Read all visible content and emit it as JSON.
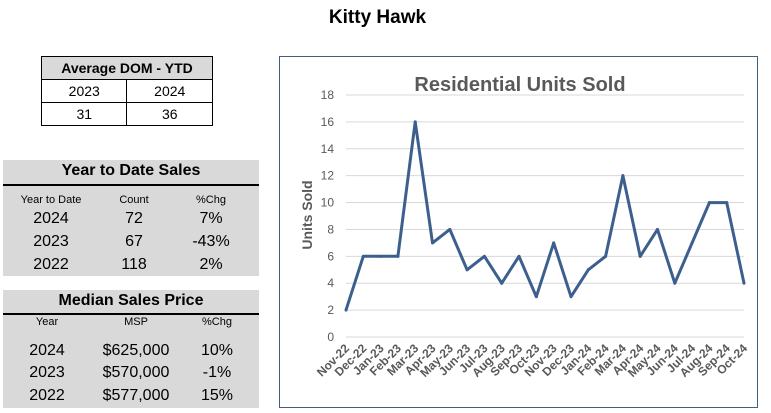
{
  "page_title": "Kitty Hawk",
  "dom": {
    "header": "Average DOM - YTD",
    "years": [
      "2023",
      "2024"
    ],
    "values": [
      "31",
      "36"
    ]
  },
  "ytd": {
    "title": "Year to Date Sales",
    "columns": [
      "Year to Date",
      "Count",
      "%Chg"
    ],
    "rows": [
      {
        "year": "2024",
        "count": "72",
        "chg": "7%"
      },
      {
        "year": "2023",
        "count": "67",
        "chg": "-43%"
      },
      {
        "year": "2022",
        "count": "118",
        "chg": "2%"
      }
    ]
  },
  "msp": {
    "title": "Median Sales Price",
    "columns": [
      "Year",
      "MSP",
      "%Chg"
    ],
    "rows": [
      {
        "year": "2024",
        "price": "$625,000",
        "chg": "10%"
      },
      {
        "year": "2023",
        "price": "$570,000",
        "chg": "-1%"
      },
      {
        "year": "2022",
        "price": "$577,000",
        "chg": "15%"
      }
    ]
  },
  "chart_data": {
    "type": "line",
    "title": "Residential Units Sold",
    "xlabel": "",
    "ylabel": "Units Sold",
    "ylim": [
      0,
      18
    ],
    "yticks": [
      "0",
      "2",
      "4",
      "6",
      "8",
      "10",
      "12",
      "14",
      "16",
      "18"
    ],
    "grid": true,
    "categories": [
      "Nov-22",
      "Dec-22",
      "Jan-23",
      "Feb-23",
      "Mar-23",
      "Apr-23",
      "May-23",
      "Jun-23",
      "Jul-23",
      "Aug-23",
      "Sep-23",
      "Oct-23",
      "Nov-23",
      "Dec-23",
      "Jan-24",
      "Feb-24",
      "Mar-24",
      "Apr-24",
      "May-24",
      "Jun-24",
      "Jul-24",
      "Aug-24",
      "Sep-24",
      "Oct-24"
    ],
    "series": [
      {
        "values": [
          2,
          6,
          6,
          6,
          16,
          7,
          8,
          5,
          6,
          4,
          6,
          3,
          7,
          3,
          5,
          6,
          12,
          6,
          8,
          4,
          7,
          10,
          10,
          4
        ]
      }
    ],
    "line_color": "#3d5f8e",
    "title_color": "#595959",
    "grid_color": "#d9d9d9"
  }
}
